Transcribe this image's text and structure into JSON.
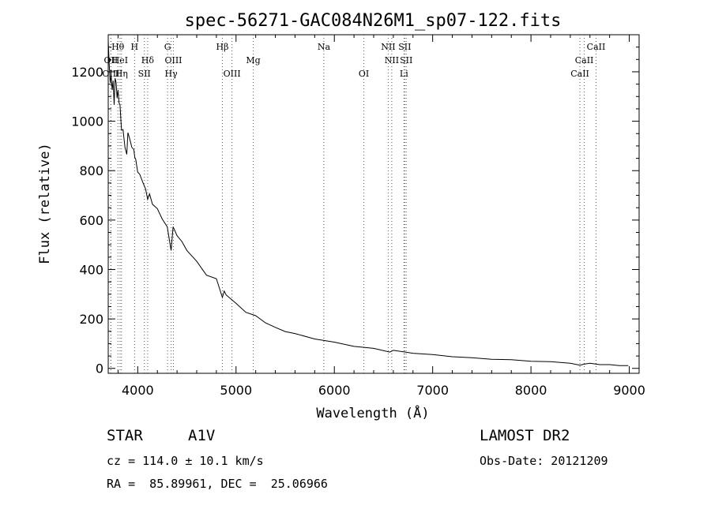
{
  "chart_data": {
    "type": "line",
    "title": "spec-56271-GAC084N26M1_sp07-122.fits",
    "xlabel": "Wavelength (Å)",
    "ylabel": "Flux (relative)",
    "xlim": [
      3700,
      9100
    ],
    "ylim": [
      -20,
      1350
    ],
    "x_ticks": [
      4000,
      5000,
      6000,
      7000,
      8000,
      9000
    ],
    "y_ticks": [
      0,
      200,
      400,
      600,
      800,
      1000,
      1200
    ],
    "grid": false,
    "series": [
      {
        "x": [
          3700,
          3710,
          3720,
          3730,
          3740,
          3750,
          3760,
          3770,
          3780,
          3790,
          3800,
          3810,
          3820,
          3835,
          3850,
          3870,
          3889,
          3900,
          3920,
          3940,
          3960,
          3970,
          3980,
          4000,
          4020,
          4050,
          4080,
          4101,
          4120,
          4150,
          4200,
          4250,
          4300,
          4340,
          4360,
          4400,
          4450,
          4500,
          4600,
          4700,
          4800,
          4861,
          4880,
          4900,
          5000,
          5100,
          5200,
          5300,
          5400,
          5500,
          5600,
          5800,
          6000,
          6200,
          6400,
          6563,
          6600,
          6800,
          7000,
          7200,
          7400,
          7600,
          7800,
          8000,
          8200,
          8400,
          8500,
          8540,
          8600,
          8700,
          8800,
          8900,
          8990
        ],
        "y": [
          1320,
          1240,
          1150,
          1190,
          1120,
          1170,
          1060,
          1180,
          1150,
          1100,
          1120,
          1080,
          1060,
          970,
          960,
          900,
          860,
          960,
          920,
          900,
          880,
          860,
          840,
          800,
          780,
          760,
          720,
          690,
          700,
          670,
          640,
          610,
          570,
          480,
          570,
          540,
          510,
          480,
          430,
          380,
          360,
          290,
          310,
          300,
          260,
          230,
          210,
          185,
          165,
          150,
          140,
          120,
          105,
          90,
          80,
          67,
          72,
          62,
          55,
          48,
          42,
          38,
          34,
          30,
          26,
          22,
          12,
          18,
          20,
          16,
          14,
          12,
          10
        ]
      }
    ],
    "lines": [
      {
        "label": "Hθ",
        "wl": 3798,
        "row": 1
      },
      {
        "label": "OII",
        "wl": 3727,
        "row": 2
      },
      {
        "label": "OIII",
        "wl": 3727,
        "row": 3
      },
      {
        "label": "HeI",
        "wl": 3820,
        "row": 2
      },
      {
        "label": "Hη",
        "wl": 3835,
        "row": 3
      },
      {
        "label": "H",
        "wl": 3968,
        "row": 1
      },
      {
        "label": "SII",
        "wl": 4068,
        "row": 3
      },
      {
        "label": "Hδ",
        "wl": 4101,
        "row": 2
      },
      {
        "label": "G",
        "wl": 4304,
        "row": 1
      },
      {
        "label": "OIII",
        "wl": 4363,
        "row": 2
      },
      {
        "label": "Hγ",
        "wl": 4340,
        "row": 3
      },
      {
        "label": "Hβ",
        "wl": 4861,
        "row": 1
      },
      {
        "label": "OIII",
        "wl": 4959,
        "row": 3
      },
      {
        "label": "Mg",
        "wl": 5175,
        "row": 2
      },
      {
        "label": "Na",
        "wl": 5893,
        "row": 1
      },
      {
        "label": "OI",
        "wl": 6300,
        "row": 3
      },
      {
        "label": "NII",
        "wl": 6548,
        "row": 1
      },
      {
        "label": "NII",
        "wl": 6584,
        "row": 2
      },
      {
        "label": "SII",
        "wl": 6716,
        "row": 1
      },
      {
        "label": "SII",
        "wl": 6731,
        "row": 2
      },
      {
        "label": "Li",
        "wl": 6708,
        "row": 3
      },
      {
        "label": "CaII",
        "wl": 8662,
        "row": 1
      },
      {
        "label": "CaII",
        "wl": 8542,
        "row": 2
      },
      {
        "label": "CaII",
        "wl": 8498,
        "row": 3
      }
    ]
  },
  "info": {
    "object_class": "STAR",
    "subclass": "A1V",
    "survey": "LAMOST DR2",
    "cz": "cz = 114.0 ± 10.1 km/s",
    "obs_date": "Obs-Date: 20121209",
    "coords": "RA =  85.89961, DEC =  25.06966"
  }
}
